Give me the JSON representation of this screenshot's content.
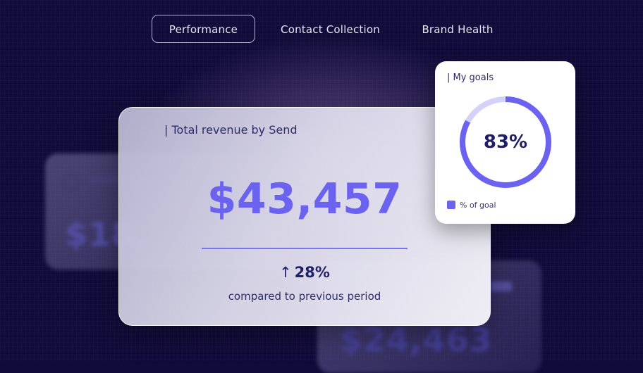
{
  "tabs": [
    {
      "label": "Performance",
      "active": true
    },
    {
      "label": "Contact Collection",
      "active": false
    },
    {
      "label": "Brand Health",
      "active": false
    }
  ],
  "revenue_card": {
    "title": "| Total revenue by Send",
    "value": "$43,457",
    "change": "28%",
    "change_direction": "up",
    "comparison": "compared to previous period"
  },
  "goals_card": {
    "title": "| My goals",
    "percent_label": "83%",
    "percent_value": 83,
    "legend": "% of goal"
  },
  "background_cards": {
    "left_value": "$18,",
    "bottom_value": "$24,463"
  },
  "colors": {
    "accent": "#6b63f0",
    "accent_light": "#d4d2fb",
    "text_dark": "#1f1d66",
    "background": "#110b3a"
  }
}
